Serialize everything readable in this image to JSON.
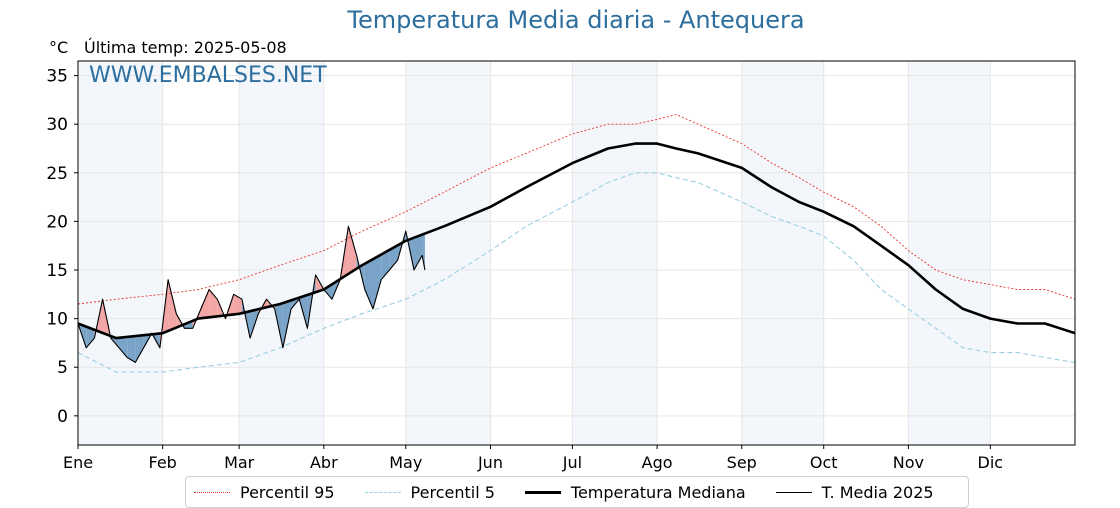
{
  "header": {
    "title": "Temperatura Media diaria - Antequera",
    "unit": "°C",
    "last_update": "Última temp: 2025-05-08",
    "watermark": "WWW.EMBALSES.NET"
  },
  "legend": {
    "items": [
      {
        "label": "Percentil 95",
        "color": "#e8322c",
        "style": "dotted"
      },
      {
        "label": "Percentil 5",
        "color": "#9ccfe3",
        "style": "dashed"
      },
      {
        "label": "Temperatura Mediana",
        "color": "#000000",
        "style": "solid-thick"
      },
      {
        "label": "T. Media 2025",
        "color": "#000000",
        "style": "solid-thin"
      }
    ]
  },
  "chart_data": {
    "type": "line",
    "title": "Temperatura Media diaria - Antequera",
    "ylabel": "°C",
    "ylim": [
      -3,
      36.5
    ],
    "xlim": [
      1,
      366
    ],
    "yticks": [
      0,
      5,
      10,
      15,
      20,
      25,
      30,
      35
    ],
    "months": [
      "Ene",
      "Feb",
      "Mar",
      "Abr",
      "May",
      "Jun",
      "Jul",
      "Ago",
      "Sep",
      "Oct",
      "Nov",
      "Dic"
    ],
    "month_start_days": [
      1,
      32,
      60,
      91,
      121,
      152,
      182,
      213,
      244,
      274,
      305,
      335
    ],
    "shaded_months": [
      "Ene",
      "Mar",
      "May",
      "Jul",
      "Sep",
      "Nov"
    ],
    "grid": true,
    "fill_colors": {
      "above": "#f2a6a6",
      "below": "#7aa3c8"
    },
    "series": [
      {
        "name": "Percentil 95",
        "color": "#e8322c",
        "style": "dotted",
        "x": [
          1,
          15,
          32,
          45,
          60,
          75,
          91,
          105,
          121,
          135,
          152,
          165,
          182,
          195,
          205,
          213,
          220,
          228,
          244,
          255,
          265,
          274,
          285,
          295,
          305,
          315,
          325,
          335,
          345,
          355,
          366
        ],
        "y": [
          11.5,
          12,
          12.5,
          13,
          14,
          15.5,
          17,
          19,
          21,
          23,
          25.5,
          27,
          29,
          30,
          30,
          30.5,
          31,
          30,
          28,
          26,
          24.5,
          23,
          21.5,
          19.5,
          17,
          15,
          14,
          13.5,
          13,
          13,
          12
        ]
      },
      {
        "name": "Percentil 5",
        "color": "#9ccfe3",
        "style": "dashed",
        "x": [
          1,
          15,
          32,
          45,
          60,
          75,
          91,
          105,
          121,
          135,
          152,
          165,
          182,
          195,
          205,
          213,
          220,
          228,
          244,
          255,
          265,
          274,
          285,
          295,
          305,
          315,
          325,
          335,
          345,
          355,
          366
        ],
        "y": [
          6.5,
          4.5,
          4.5,
          5,
          5.5,
          7,
          9,
          10.5,
          12,
          14,
          17,
          19.5,
          22,
          24,
          25,
          25,
          24.5,
          24,
          22,
          20.5,
          19.5,
          18.5,
          16,
          13,
          11,
          9,
          7,
          6.5,
          6.5,
          6,
          5.5
        ]
      },
      {
        "name": "Temperatura Mediana",
        "color": "#000000",
        "style": "solid-thick",
        "x": [
          1,
          15,
          32,
          45,
          60,
          75,
          91,
          105,
          121,
          135,
          152,
          165,
          182,
          195,
          205,
          213,
          220,
          228,
          244,
          255,
          265,
          274,
          285,
          295,
          305,
          315,
          325,
          335,
          345,
          355,
          366
        ],
        "y": [
          9.5,
          8,
          8.5,
          10,
          10.5,
          11.5,
          13,
          15.5,
          18,
          19.5,
          21.5,
          23.5,
          26,
          27.5,
          28,
          28,
          27.5,
          27,
          25.5,
          23.5,
          22,
          21,
          19.5,
          17.5,
          15.5,
          13,
          11,
          10,
          9.5,
          9.5,
          8.5
        ]
      },
      {
        "name": "T. Media 2025",
        "color": "#000000",
        "style": "solid-thin",
        "x": [
          1,
          4,
          7,
          10,
          13,
          16,
          19,
          22,
          25,
          28,
          31,
          34,
          37,
          40,
          43,
          46,
          49,
          52,
          55,
          58,
          61,
          64,
          67,
          70,
          73,
          76,
          79,
          82,
          85,
          88,
          91,
          94,
          97,
          100,
          103,
          106,
          109,
          112,
          115,
          118,
          121,
          124,
          127,
          128
        ],
        "y": [
          9.5,
          7,
          8,
          12,
          8,
          7,
          6,
          5.5,
          7,
          8.5,
          7,
          14,
          10.5,
          9,
          9,
          11,
          13,
          12,
          10,
          12.5,
          12,
          8,
          10.5,
          12,
          11,
          7,
          11,
          12,
          9,
          14.5,
          13,
          12,
          14,
          19.5,
          16.5,
          13,
          11,
          14,
          15,
          16,
          19,
          15,
          16.5,
          15
        ]
      }
    ]
  }
}
